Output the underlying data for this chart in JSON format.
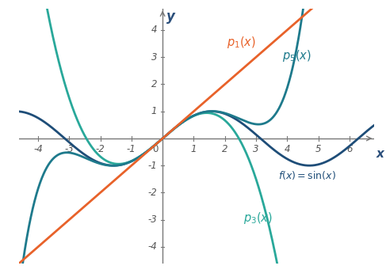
{
  "xlabel": "x",
  "ylabel": "y",
  "xlim": [
    -4.6,
    6.8
  ],
  "ylim": [
    -4.6,
    4.8
  ],
  "xticks": [
    -4,
    -3,
    -2,
    -1,
    1,
    2,
    3,
    4,
    5,
    6
  ],
  "yticks": [
    -4,
    -3,
    -2,
    -1,
    1,
    2,
    3,
    4
  ],
  "color_sin": "#1e4d78",
  "color_p1": "#e8622a",
  "color_p3": "#29a89a",
  "color_p5": "#1e7a8c",
  "linewidth": 2.0,
  "label_p1": "$p_1(x)$",
  "label_p3": "$p_3(x)$",
  "label_p5": "$p_5(x)$",
  "label_f": "$f(x) = \\sin(x)$",
  "background_color": "#ffffff",
  "tick_color": "#555555",
  "axis_color": "#777777",
  "label_color": "#2a4e7a"
}
